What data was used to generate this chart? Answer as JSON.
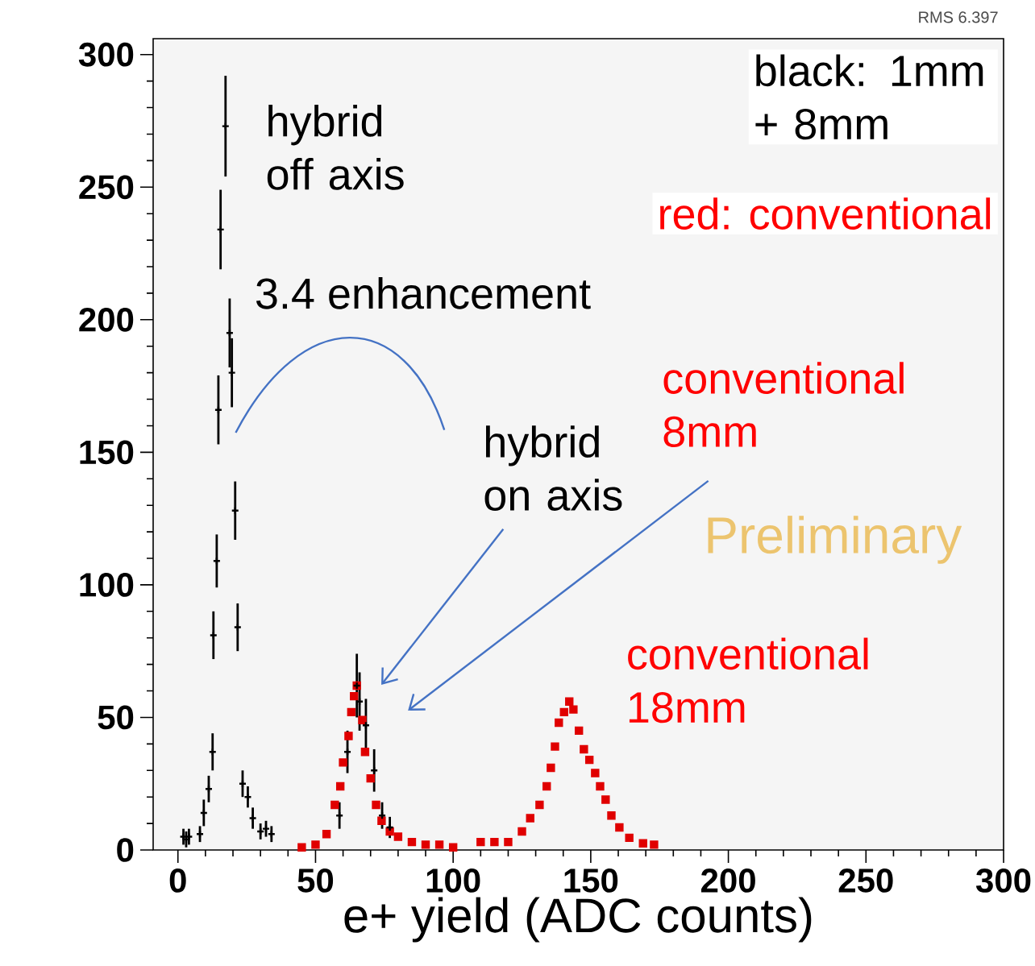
{
  "chart_data": {
    "type": "scatter",
    "xlabel": "e+ yield (ADC counts)",
    "xlim": [
      -9,
      300
    ],
    "ylim": [
      0,
      306
    ],
    "xticks": [
      0,
      50,
      100,
      150,
      200,
      250,
      300
    ],
    "yticks": [
      0,
      50,
      100,
      150,
      200,
      250,
      300
    ],
    "series": [
      {
        "color": "#000000",
        "marker": "cross",
        "x": [
          2,
          3,
          4,
          8,
          9.4,
          11.2,
          12.6,
          12.9,
          14.1,
          14.7,
          15.5,
          17.3,
          18.8,
          19.6,
          20.8,
          21.7,
          23.5,
          25.4,
          27.2,
          30,
          32,
          34,
          58.7,
          61.6,
          65,
          66,
          68.3,
          71.3,
          74.2,
          77
        ],
        "values": [
          5,
          4,
          5,
          6,
          14,
          23,
          37,
          81,
          109,
          166,
          234,
          273,
          195,
          180,
          128,
          84,
          25,
          20,
          12,
          7,
          8,
          6,
          13,
          37,
          62,
          56,
          47,
          30,
          13,
          8.5
        ],
        "errors": [
          3,
          3,
          3,
          3,
          5,
          5,
          7,
          9,
          10,
          13,
          15,
          19,
          13,
          13,
          11,
          9,
          5,
          4,
          4,
          3,
          3,
          3,
          5,
          8,
          12,
          11,
          10,
          8,
          5,
          4
        ]
      },
      {
        "color": "#e00000",
        "marker": "square",
        "x": [
          45,
          50,
          54,
          57,
          59,
          60,
          62,
          63,
          64,
          65,
          67,
          68,
          70,
          72,
          74,
          77,
          80,
          85,
          90,
          95,
          100,
          110,
          115,
          120,
          125,
          128,
          131.4,
          134,
          135.5,
          137,
          138.4,
          140.3,
          142.2,
          143.7,
          145.7,
          147.5,
          149.5,
          151.6,
          153.4,
          155.4,
          157.5,
          160.4,
          164,
          169,
          173
        ],
        "values": [
          1,
          2,
          6,
          17,
          24,
          33,
          43,
          52,
          58,
          62,
          49,
          37,
          27,
          17,
          11,
          7,
          5,
          3,
          2,
          2,
          1,
          3,
          3,
          3,
          7,
          12,
          17,
          24,
          31,
          39,
          48,
          52,
          56,
          53,
          45,
          38,
          34,
          29,
          24,
          19,
          13,
          8.5,
          4.6,
          2.5,
          2
        ]
      }
    ],
    "annotations": [
      "hybrid off axis",
      "3.4 enhancement",
      "hybrid on axis",
      "conventional 8mm",
      "conventional 18mm",
      "Preliminary",
      "black: 1mm + 8mm",
      "red: conventional",
      "RMS 6.397"
    ]
  }
}
